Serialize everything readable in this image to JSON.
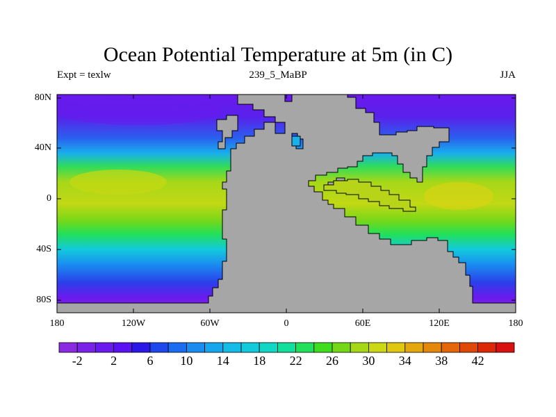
{
  "title": "Ocean Potential Temperature at 5m (in C)",
  "subtitle_left": "Expt = texlw",
  "subtitle_center": "239_5_MaBP",
  "subtitle_right": "JJA",
  "y_axis_ticks": [
    "80N",
    "40N",
    "0",
    "40S",
    "80S"
  ],
  "x_axis_ticks": [
    "180",
    "120W",
    "60W",
    "0",
    "60E",
    "120E",
    "180"
  ],
  "colorbar": {
    "labels": [
      "-2",
      "2",
      "6",
      "10",
      "14",
      "18",
      "22",
      "26",
      "30",
      "34",
      "38",
      "42"
    ],
    "colors": [
      "#8a2be2",
      "#7a22e8",
      "#6a1aee",
      "#5a12f2",
      "#2a18e6",
      "#1e48ee",
      "#1a6cf0",
      "#1a8cf0",
      "#16a6ee",
      "#14bce8",
      "#12cadc",
      "#10d8c4",
      "#10e09c",
      "#22e05a",
      "#40dc1e",
      "#74d818",
      "#a6d818",
      "#ccd814",
      "#e0c810",
      "#e4a80e",
      "#e4880c",
      "#e4680a",
      "#e04808",
      "#dc2806",
      "#d81010"
    ]
  },
  "land_color": "#a6a6a6"
}
